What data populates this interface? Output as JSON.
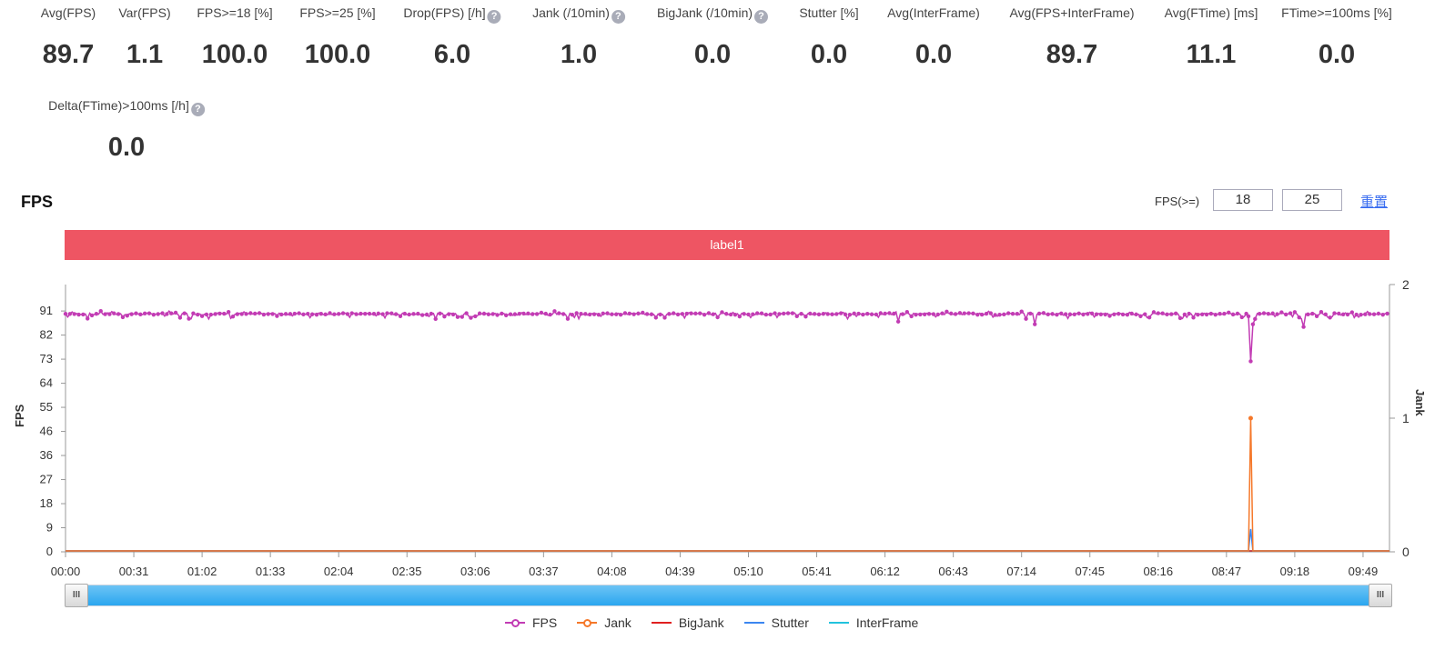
{
  "stats": [
    {
      "label": "Avg(FPS)",
      "value": "89.7"
    },
    {
      "label": "Var(FPS)",
      "value": "1.1"
    },
    {
      "label": "FPS>=18 [%]",
      "value": "100.0"
    },
    {
      "label": "FPS>=25 [%]",
      "value": "100.0"
    },
    {
      "label": "Drop(FPS) [/h]",
      "value": "6.0",
      "help": true
    },
    {
      "label": "Jank (/10min)",
      "value": "1.0",
      "help": true
    },
    {
      "label": "BigJank (/10min)",
      "value": "0.0",
      "help": true
    },
    {
      "label": "Stutter [%]",
      "value": "0.0"
    },
    {
      "label": "Avg(InterFrame)",
      "value": "0.0"
    },
    {
      "label": "Avg(FPS+InterFrame)",
      "value": "89.7"
    },
    {
      "label": "Avg(FTime) [ms]",
      "value": "11.1"
    },
    {
      "label": "FTime>=100ms [%]",
      "value": "0.0"
    },
    {
      "label": "Delta(FTime)>100ms [/h]",
      "value": "0.0",
      "help": true
    }
  ],
  "help_glyph": "?",
  "section_title": "FPS",
  "threshold": {
    "label": "FPS(>=)",
    "low": "18",
    "high": "25",
    "reset": "重置"
  },
  "band_label": "label1",
  "slider": {
    "handle_glyph": "III",
    "start": 0,
    "end": 1
  },
  "chart_data": {
    "type": "line",
    "ylabel": "FPS",
    "y2label": "Jank",
    "ylim": [
      0,
      101
    ],
    "y2lim": [
      0,
      2
    ],
    "yticks": [
      "0",
      "9",
      "18",
      "27",
      "36",
      "46",
      "55",
      "64",
      "73",
      "82",
      "91"
    ],
    "ytick_values": [
      0,
      9.1,
      18.2,
      27.3,
      36.4,
      45.5,
      54.6,
      63.7,
      72.8,
      81.9,
      91
    ],
    "y2ticks": [
      "0",
      "1",
      "2"
    ],
    "xlim_seconds": [
      0,
      601
    ],
    "xticks": [
      "00:00",
      "00:31",
      "01:02",
      "01:33",
      "02:04",
      "02:35",
      "03:06",
      "03:37",
      "04:08",
      "04:39",
      "05:10",
      "05:41",
      "06:12",
      "06:43",
      "07:14",
      "07:45",
      "08:16",
      "08:47",
      "09:18",
      "09:49"
    ],
    "series": [
      {
        "name": "FPS",
        "color": "#c23cb4",
        "typical": 89.7,
        "range": [
          88,
          91
        ],
        "dips": [
          [
            378,
            87
          ],
          [
            440,
            86
          ],
          [
            537,
            89
          ],
          [
            538,
            72
          ],
          [
            539,
            86
          ],
          [
            540,
            88
          ],
          [
            562,
            85
          ]
        ]
      },
      {
        "name": "Jank",
        "color": "#f5782a",
        "spikes": [
          [
            538,
            1
          ]
        ]
      },
      {
        "name": "BigJank",
        "color": "#e02020",
        "spikes": []
      },
      {
        "name": "Stutter",
        "color": "#3b86f0",
        "spikes": [
          [
            538,
            0.17
          ]
        ]
      },
      {
        "name": "InterFrame",
        "color": "#22c3dd",
        "spikes": []
      }
    ]
  }
}
